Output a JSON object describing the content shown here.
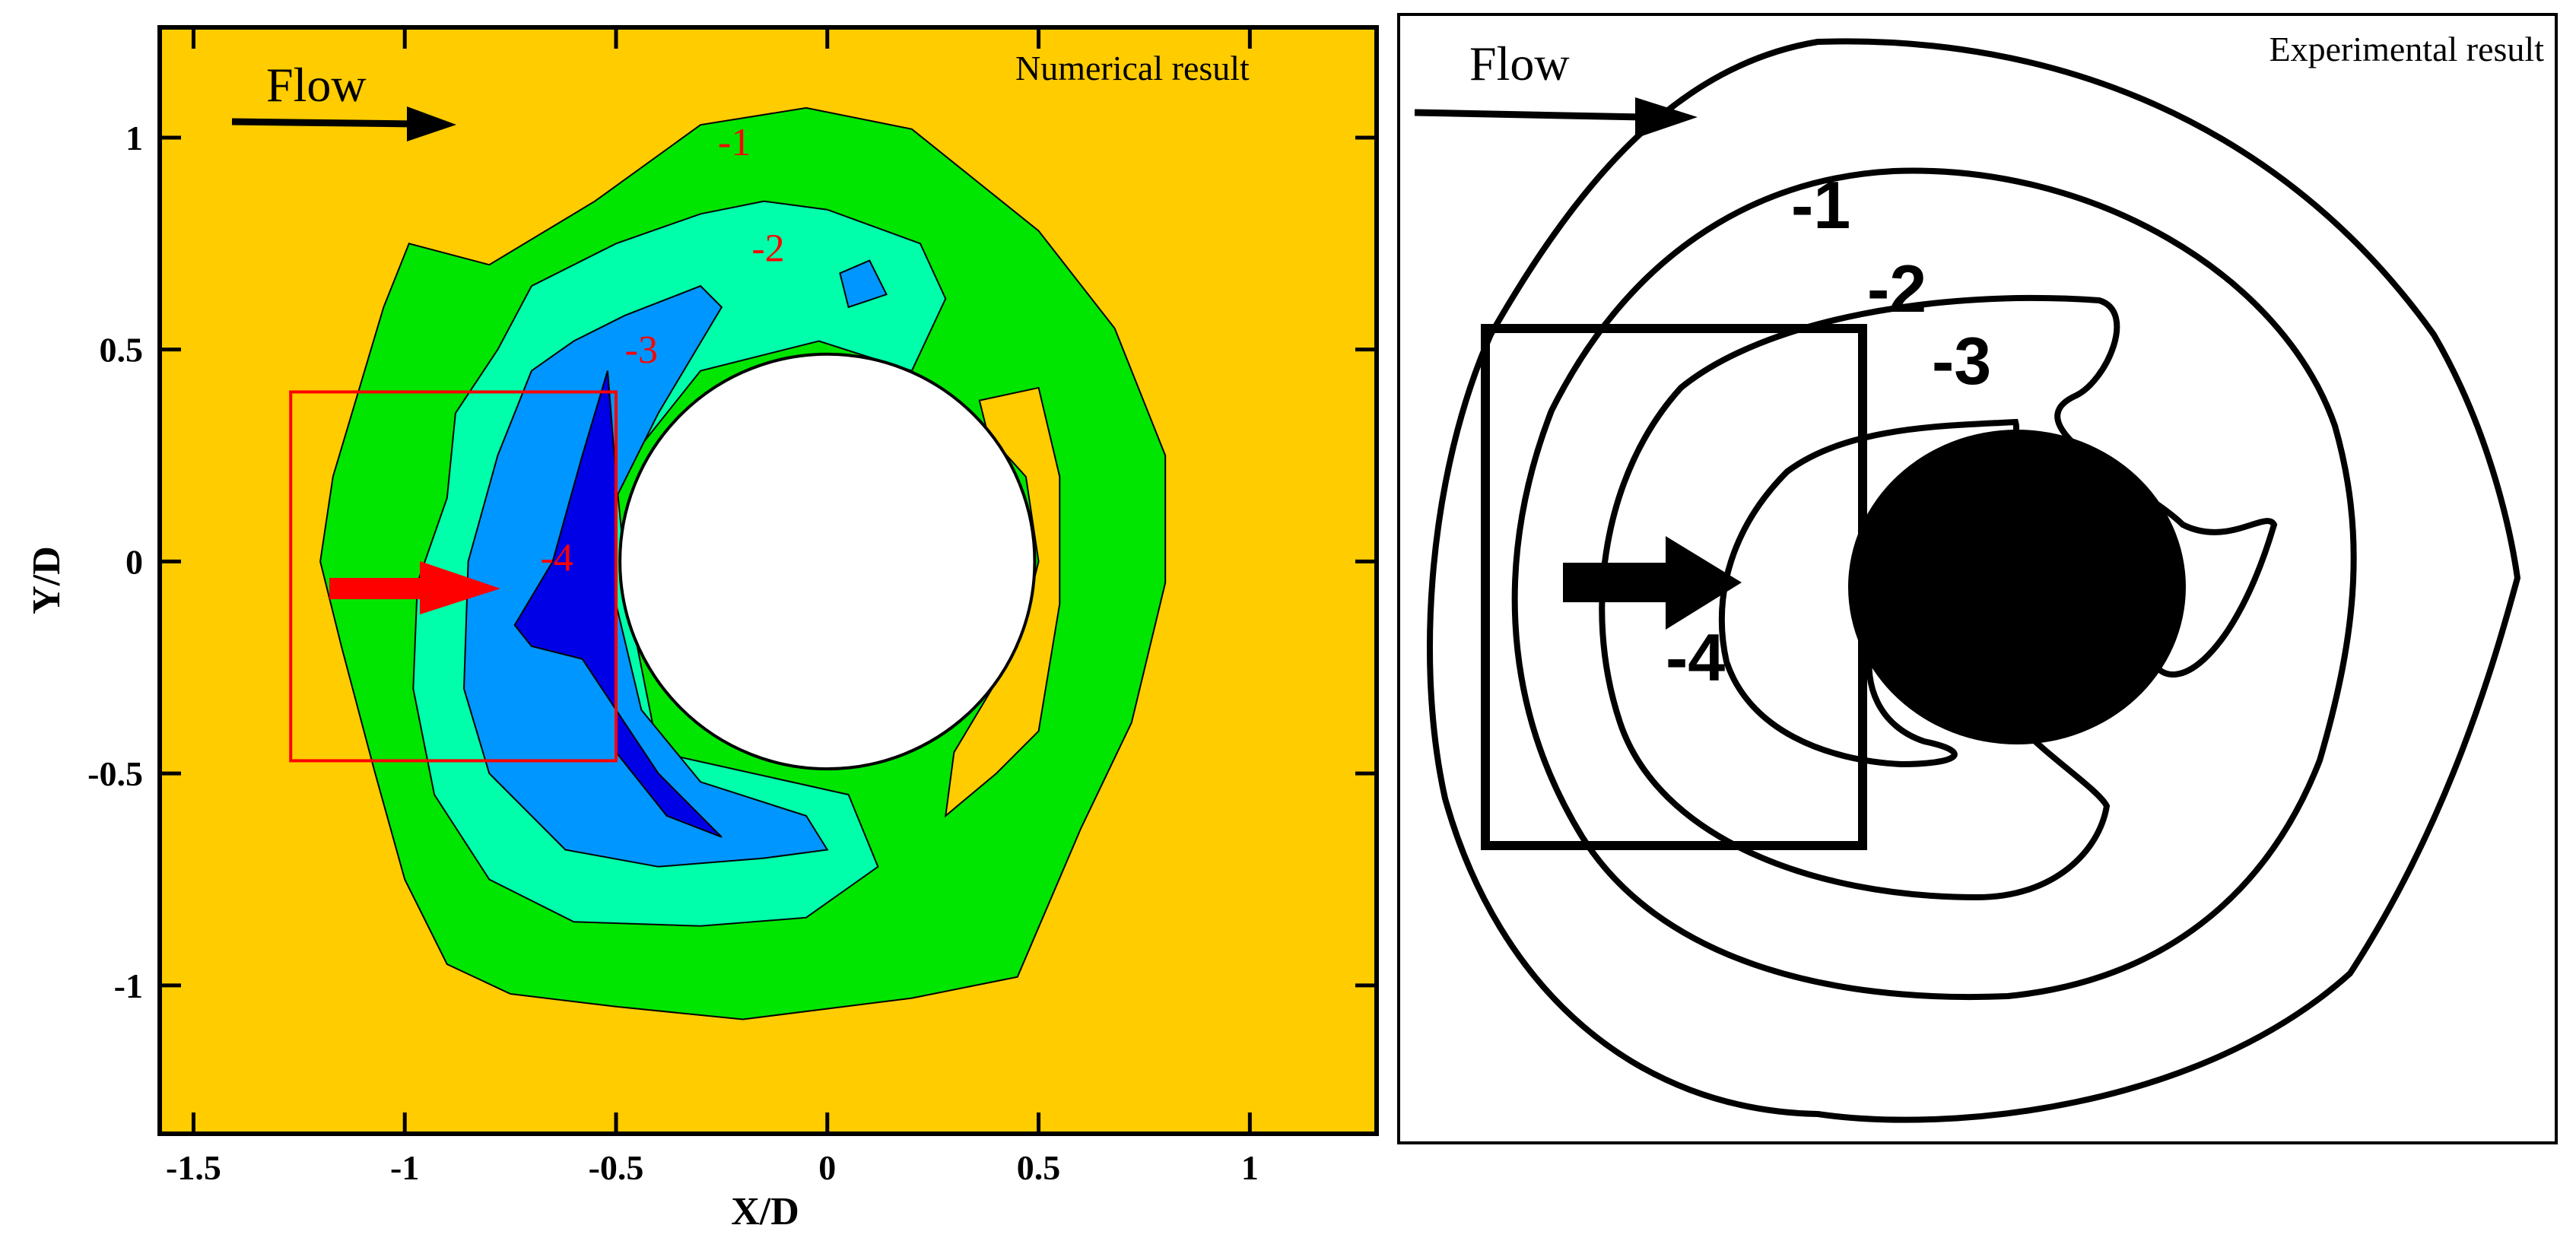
{
  "left_panel": {
    "caption": "Numerical result",
    "flow_label": "Flow",
    "colors": {
      "background": "#FFCC00",
      "level_minus1": "#00E600",
      "level_minus2": "#00FFAA",
      "level_minus3": "#0096FF",
      "level_minus4": "#0000E6",
      "cylinder": "#FFFFFF",
      "highlight": "#FF0000"
    }
  },
  "right_panel": {
    "caption": "Experimental result",
    "flow_label": "Flow",
    "contour_labels": [
      "-1",
      "-2",
      "-3",
      "-4"
    ]
  },
  "chart_data": {
    "type": "contour",
    "title": "",
    "xlabel": "X/D",
    "ylabel": "Y/D",
    "xlim": [
      -1.58,
      1.3
    ],
    "ylim": [
      -1.35,
      1.26
    ],
    "x_ticks": [
      -1.5,
      -1,
      -0.5,
      0,
      0.5,
      1
    ],
    "x_tick_labels": [
      "-1.5",
      "-1",
      "-0.5",
      "0",
      "0.5",
      "1"
    ],
    "y_ticks": [
      -1,
      -0.5,
      0,
      0.5,
      1
    ],
    "y_tick_labels": [
      "-1",
      "-0.5",
      "0",
      "0.5",
      "1"
    ],
    "contour_labels": [
      {
        "text": "-1",
        "x": -0.22,
        "y": 0.98
      },
      {
        "text": "-2",
        "x": -0.14,
        "y": 0.73
      },
      {
        "text": "-3",
        "x": -0.44,
        "y": 0.49
      },
      {
        "text": "-4",
        "x": -0.64,
        "y": 0.0
      }
    ],
    "cylinder": {
      "cx": 0.0,
      "cy": 0.0,
      "r": 0.49
    },
    "highlight_box": {
      "x0": -1.27,
      "x1": -0.5,
      "y0": -0.47,
      "y1": 0.4
    },
    "contours": [
      {
        "level": "-1",
        "points": [
          [
            -0.99,
            0.75
          ],
          [
            -1.05,
            0.6
          ],
          [
            -1.17,
            0.2
          ],
          [
            -1.2,
            0.0
          ],
          [
            -1.15,
            -0.2
          ],
          [
            -1.07,
            -0.5
          ],
          [
            -1.0,
            -0.75
          ],
          [
            -0.9,
            -0.95
          ],
          [
            -0.75,
            -1.02
          ],
          [
            -0.5,
            -1.05
          ],
          [
            -0.2,
            -1.08
          ],
          [
            0.2,
            -1.03
          ],
          [
            0.45,
            -0.98
          ],
          [
            0.6,
            -0.63
          ],
          [
            0.72,
            -0.38
          ],
          [
            0.8,
            -0.05
          ],
          [
            0.8,
            0.25
          ],
          [
            0.68,
            0.55
          ],
          [
            0.5,
            0.78
          ],
          [
            0.2,
            1.02
          ],
          [
            -0.05,
            1.07
          ],
          [
            -0.3,
            1.03
          ],
          [
            -0.55,
            0.85
          ],
          [
            -0.8,
            0.7
          ]
        ]
      },
      {
        "level": "-2",
        "points": [
          [
            -0.78,
            0.5
          ],
          [
            -0.88,
            0.35
          ],
          [
            -0.9,
            0.15
          ],
          [
            -0.97,
            -0.05
          ],
          [
            -0.98,
            -0.3
          ],
          [
            -0.93,
            -0.55
          ],
          [
            -0.8,
            -0.75
          ],
          [
            -0.6,
            -0.85
          ],
          [
            -0.3,
            -0.86
          ],
          [
            -0.05,
            -0.84
          ],
          [
            0.12,
            -0.72
          ],
          [
            0.05,
            -0.55
          ],
          [
            -0.4,
            -0.45
          ],
          [
            -0.47,
            -0.1
          ],
          [
            -0.5,
            0.2
          ],
          [
            -0.3,
            0.45
          ],
          [
            -0.02,
            0.52
          ],
          [
            0.2,
            0.45
          ],
          [
            0.28,
            0.62
          ],
          [
            0.22,
            0.75
          ],
          [
            0.0,
            0.83
          ],
          [
            -0.15,
            0.85
          ],
          [
            -0.3,
            0.82
          ],
          [
            -0.5,
            0.75
          ],
          [
            -0.7,
            0.65
          ]
        ]
      },
      {
        "level": "-3",
        "points": [
          [
            -0.7,
            0.45
          ],
          [
            -0.78,
            0.25
          ],
          [
            -0.85,
            0.0
          ],
          [
            -0.86,
            -0.3
          ],
          [
            -0.8,
            -0.5
          ],
          [
            -0.62,
            -0.68
          ],
          [
            -0.4,
            -0.72
          ],
          [
            -0.15,
            -0.7
          ],
          [
            0.0,
            -0.68
          ],
          [
            -0.05,
            -0.6
          ],
          [
            -0.3,
            -0.52
          ],
          [
            -0.44,
            -0.35
          ],
          [
            -0.5,
            -0.1
          ],
          [
            -0.5,
            0.15
          ],
          [
            -0.4,
            0.35
          ],
          [
            -0.25,
            0.6
          ],
          [
            -0.3,
            0.65
          ],
          [
            -0.48,
            0.58
          ],
          [
            -0.6,
            0.52
          ]
        ]
      },
      {
        "level": "-4",
        "points": [
          [
            -0.52,
            0.45
          ],
          [
            -0.58,
            0.25
          ],
          [
            -0.65,
            0.0
          ],
          [
            -0.74,
            -0.15
          ],
          [
            -0.7,
            -0.2
          ],
          [
            -0.58,
            -0.23
          ],
          [
            -0.5,
            -0.35
          ],
          [
            -0.4,
            -0.5
          ],
          [
            -0.3,
            -0.6
          ],
          [
            -0.25,
            -0.65
          ],
          [
            -0.38,
            -0.6
          ],
          [
            -0.5,
            -0.45
          ],
          [
            -0.5,
            -0.1
          ],
          [
            -0.5,
            0.2
          ]
        ]
      },
      {
        "level": "-3",
        "points": [
          [
            0.03,
            0.68
          ],
          [
            0.1,
            0.71
          ],
          [
            0.14,
            0.63
          ],
          [
            0.05,
            0.6
          ]
        ]
      },
      {
        "level": "bg",
        "points": [
          [
            0.36,
            0.38
          ],
          [
            0.5,
            0.41
          ],
          [
            0.55,
            0.2
          ],
          [
            0.55,
            -0.1
          ],
          [
            0.5,
            -0.4
          ],
          [
            0.4,
            -0.5
          ],
          [
            0.28,
            -0.6
          ],
          [
            0.3,
            -0.45
          ],
          [
            0.45,
            -0.2
          ],
          [
            0.5,
            0.0
          ],
          [
            0.47,
            0.2
          ],
          [
            0.38,
            0.3
          ]
        ]
      }
    ]
  }
}
